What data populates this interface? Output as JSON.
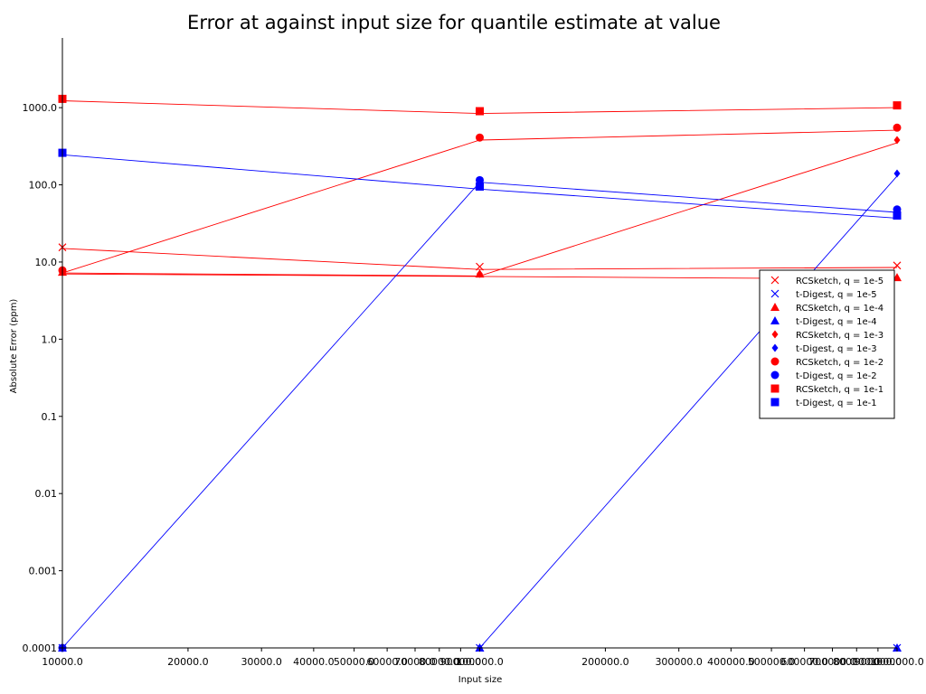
{
  "chart_data": {
    "type": "line",
    "title": "Error at against input size for quantile estimate at value",
    "xlabel": "Input size",
    "ylabel": "Absolute Error (ppm)",
    "xscale": "log",
    "yscale": "log",
    "xlim": [
      10000,
      1000000
    ],
    "ylim": [
      0.0001,
      8000
    ],
    "grid": false,
    "legend_position": "right",
    "x_ticks": [
      {
        "value": 10000,
        "label": "10000.0"
      },
      {
        "value": 20000,
        "label": "20000.0"
      },
      {
        "value": 30000,
        "label": "30000.0"
      },
      {
        "value": 40000,
        "label": "40000.0"
      },
      {
        "value": 50000,
        "label": "50000.0"
      },
      {
        "value": 60000,
        "label": "60000.0"
      },
      {
        "value": 70000,
        "label": "70000.0"
      },
      {
        "value": 80000,
        "label": "80000.0"
      },
      {
        "value": 90000,
        "label": "90000.0"
      },
      {
        "value": 100000,
        "label": "100000.0"
      },
      {
        "value": 200000,
        "label": "200000.0"
      },
      {
        "value": 300000,
        "label": "300000.0"
      },
      {
        "value": 400000,
        "label": "400000.0"
      },
      {
        "value": 500000,
        "label": "500000.0"
      },
      {
        "value": 600000,
        "label": "600000.0"
      },
      {
        "value": 700000,
        "label": "700000.0"
      },
      {
        "value": 800000,
        "label": "800000.0"
      },
      {
        "value": 900000,
        "label": "900000.0"
      },
      {
        "value": 1000000,
        "label": "1000000.0"
      }
    ],
    "y_ticks": [
      {
        "value": 0.0001,
        "label": "0.0001"
      },
      {
        "value": 0.001,
        "label": "0.001"
      },
      {
        "value": 0.01,
        "label": "0.01"
      },
      {
        "value": 0.1,
        "label": "0.1"
      },
      {
        "value": 1,
        "label": "1.0"
      },
      {
        "value": 10,
        "label": "10.0"
      },
      {
        "value": 100,
        "label": "100.0"
      },
      {
        "value": 1000,
        "label": "1000.0"
      }
    ],
    "x": [
      10000,
      100000,
      1000000
    ],
    "series": [
      {
        "name": "RCSketch, q = 1e-5",
        "color": "#ff0000",
        "marker": "x",
        "points": [
          15.5,
          8.7,
          9.0
        ],
        "line": [
          15.0,
          8.0,
          8.5
        ]
      },
      {
        "name": "t-Digest, q = 1e-5",
        "color": "#0000ff",
        "marker": "x",
        "points": [
          0.0001,
          0.0001,
          0.0001
        ],
        "line": [
          0.0001,
          0.0001,
          0.0001
        ]
      },
      {
        "name": "RCSketch, q = 1e-4",
        "color": "#ff0000",
        "marker": "triangle",
        "points": [
          7.4,
          7.0,
          6.3
        ],
        "line": [
          7.0,
          6.5,
          6.0
        ]
      },
      {
        "name": "t-Digest, q = 1e-4",
        "color": "#0000ff",
        "marker": "triangle",
        "points": [
          0.0001,
          0.0001,
          0.0001
        ],
        "line": [
          0.0001,
          0.0001,
          0.0001
        ]
      },
      {
        "name": "RCSketch, q = 1e-3",
        "color": "#ff0000",
        "marker": "diamond",
        "points": [
          7.7,
          7.0,
          380
        ],
        "line": [
          7.2,
          6.6,
          350
        ]
      },
      {
        "name": "t-Digest, q = 1e-3",
        "color": "#0000ff",
        "marker": "diamond",
        "points": [
          0.0001,
          0.0001,
          140
        ],
        "line": [
          0.0001,
          0.0001,
          130
        ]
      },
      {
        "name": "RCSketch, q = 1e-2",
        "color": "#ff0000",
        "marker": "circle",
        "points": [
          7.8,
          410,
          550
        ],
        "line": [
          7.2,
          380,
          510
        ]
      },
      {
        "name": "t-Digest, q = 1e-2",
        "color": "#0000ff",
        "marker": "circle",
        "points": [
          0.0001,
          115,
          48
        ],
        "line": [
          0.0001,
          108,
          44
        ]
      },
      {
        "name": "RCSketch, q = 1e-1",
        "color": "#ff0000",
        "marker": "square",
        "points": [
          1300,
          900,
          1070
        ],
        "line": [
          1230,
          840,
          1000
        ]
      },
      {
        "name": "t-Digest, q = 1e-1",
        "color": "#0000ff",
        "marker": "square",
        "points": [
          260,
          95,
          40
        ],
        "line": [
          245,
          88,
          37
        ]
      }
    ]
  }
}
